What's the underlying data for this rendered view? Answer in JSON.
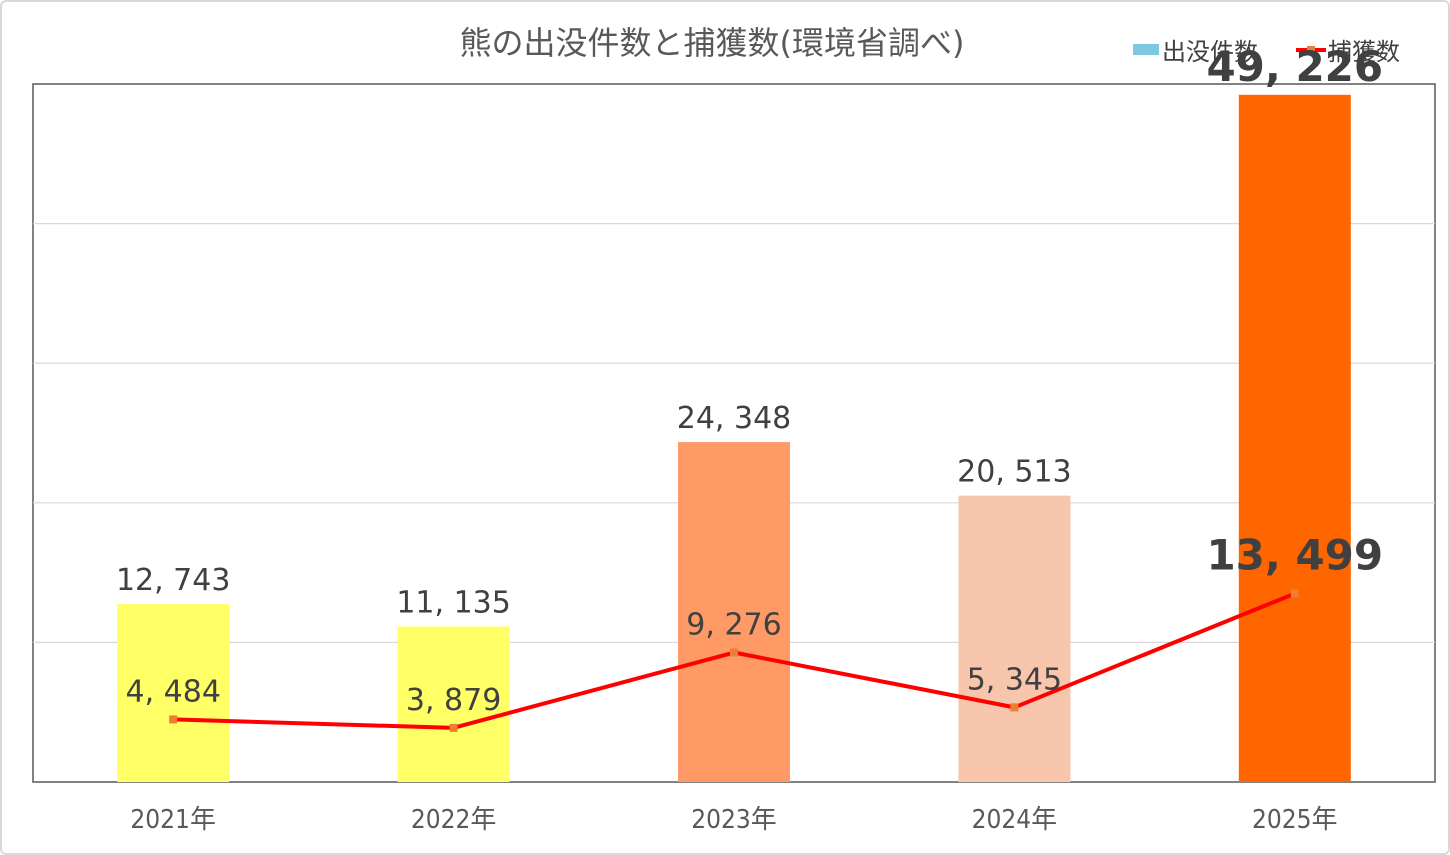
{
  "chart_data": {
    "type": "bar",
    "title": "熊の出没件数と捕獲数(環境省調べ)",
    "categories": [
      "2021年",
      "2022年",
      "2023年",
      "2024年",
      "2025年"
    ],
    "series": [
      {
        "name": "出没件数",
        "kind": "bar",
        "values": [
          12743,
          11135,
          24348,
          20513,
          49226
        ],
        "labels": [
          "12, 743",
          "11, 135",
          "24, 348",
          "20, 513",
          "49, 226"
        ],
        "bar_colors": [
          "#FFFF66",
          "#FFFF66",
          "#FF9966",
          "#F7C6AD",
          "#FF6600"
        ],
        "legend_color": "#7EC8E3"
      },
      {
        "name": "捕獲数",
        "kind": "line",
        "values": [
          4484,
          3879,
          9276,
          5345,
          13499
        ],
        "labels": [
          "4, 484",
          "3, 879",
          "9, 276",
          "5, 345",
          "13, 499"
        ],
        "color": "#FF0000",
        "marker_color": "#ED7D31"
      }
    ],
    "ylim": [
      0,
      50000
    ],
    "grid": true,
    "legend": "top-right",
    "emphasized_year": "2025年"
  }
}
